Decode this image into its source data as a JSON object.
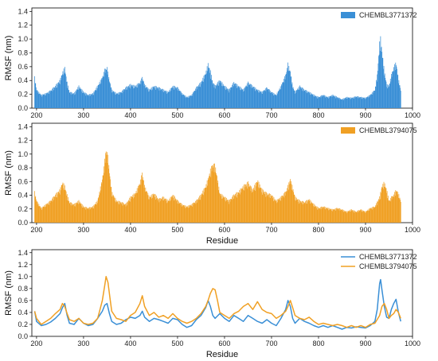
{
  "chart_data": [
    {
      "type": "bar",
      "ylabel": "RMSF (nm)",
      "xlabel": "",
      "xlim": [
        190,
        1000
      ],
      "ylim": [
        0,
        1.45
      ],
      "xticks": [
        "200",
        "300",
        "400",
        "500",
        "600",
        "700",
        "800",
        "900",
        "1000"
      ],
      "yticks": [
        "0.0",
        "0.2",
        "0.4",
        "0.6",
        "0.8",
        "1.0",
        "1.2",
        "1.4"
      ],
      "legend_position": "top-right",
      "series": [
        {
          "name": "CHEMBL3771372",
          "color": "#3a8fd6",
          "x": [
            196,
            200,
            210,
            220,
            230,
            240,
            250,
            255,
            260,
            265,
            270,
            280,
            290,
            300,
            310,
            320,
            330,
            340,
            345,
            350,
            355,
            360,
            370,
            380,
            390,
            400,
            410,
            420,
            425,
            430,
            440,
            450,
            460,
            470,
            480,
            490,
            500,
            510,
            520,
            530,
            540,
            550,
            560,
            565,
            570,
            575,
            580,
            590,
            600,
            610,
            620,
            630,
            640,
            650,
            660,
            670,
            680,
            690,
            700,
            710,
            720,
            730,
            735,
            740,
            745,
            750,
            760,
            770,
            780,
            790,
            800,
            810,
            820,
            830,
            840,
            850,
            860,
            870,
            880,
            890,
            900,
            910,
            920,
            925,
            930,
            932,
            935,
            940,
            945,
            950,
            955,
            960,
            965,
            970,
            975
          ],
          "values": [
            0.42,
            0.25,
            0.18,
            0.2,
            0.24,
            0.3,
            0.38,
            0.48,
            0.55,
            0.35,
            0.22,
            0.2,
            0.3,
            0.22,
            0.18,
            0.2,
            0.3,
            0.42,
            0.52,
            0.55,
            0.38,
            0.25,
            0.2,
            0.22,
            0.28,
            0.32,
            0.3,
            0.35,
            0.42,
            0.32,
            0.25,
            0.3,
            0.28,
            0.25,
            0.22,
            0.3,
            0.28,
            0.2,
            0.15,
            0.18,
            0.28,
            0.35,
            0.48,
            0.6,
            0.5,
            0.35,
            0.3,
            0.38,
            0.3,
            0.25,
            0.35,
            0.3,
            0.25,
            0.35,
            0.3,
            0.25,
            0.22,
            0.28,
            0.22,
            0.18,
            0.3,
            0.45,
            0.6,
            0.5,
            0.3,
            0.22,
            0.3,
            0.25,
            0.22,
            0.18,
            0.15,
            0.18,
            0.15,
            0.18,
            0.15,
            0.12,
            0.15,
            0.14,
            0.16,
            0.15,
            0.14,
            0.18,
            0.25,
            0.45,
            0.88,
            0.95,
            0.78,
            0.5,
            0.32,
            0.3,
            0.45,
            0.55,
            0.62,
            0.4,
            0.25
          ]
        }
      ]
    },
    {
      "type": "bar",
      "ylabel": "RMSF (nm)",
      "xlabel": "Residue",
      "xlim": [
        190,
        1000
      ],
      "ylim": [
        0,
        1.45
      ],
      "xticks": [
        "200",
        "300",
        "400",
        "500",
        "600",
        "700",
        "800",
        "900",
        "1000"
      ],
      "yticks": [
        "0.0",
        "0.2",
        "0.4",
        "0.6",
        "0.8",
        "1.0",
        "1.2",
        "1.4"
      ],
      "legend_position": "top-right",
      "series": [
        {
          "name": "CHEMBL3794075",
          "color": "#f0a024",
          "x": [
            196,
            200,
            210,
            220,
            230,
            240,
            250,
            255,
            260,
            265,
            270,
            280,
            290,
            300,
            310,
            320,
            330,
            335,
            340,
            345,
            348,
            352,
            356,
            360,
            370,
            380,
            390,
            400,
            410,
            420,
            425,
            430,
            440,
            450,
            460,
            470,
            480,
            490,
            500,
            510,
            520,
            530,
            540,
            550,
            560,
            565,
            570,
            575,
            580,
            585,
            590,
            600,
            610,
            620,
            630,
            640,
            650,
            660,
            670,
            680,
            690,
            700,
            710,
            720,
            730,
            735,
            740,
            745,
            750,
            760,
            770,
            780,
            790,
            800,
            810,
            820,
            830,
            840,
            850,
            860,
            870,
            880,
            890,
            900,
            910,
            920,
            930,
            935,
            940,
            945,
            950,
            955,
            960,
            965,
            970,
            975
          ],
          "values": [
            0.42,
            0.3,
            0.2,
            0.25,
            0.3,
            0.38,
            0.45,
            0.55,
            0.5,
            0.38,
            0.28,
            0.25,
            0.3,
            0.22,
            0.2,
            0.22,
            0.3,
            0.45,
            0.6,
            0.85,
            1.0,
            0.9,
            0.65,
            0.42,
            0.3,
            0.28,
            0.25,
            0.35,
            0.4,
            0.55,
            0.68,
            0.5,
            0.35,
            0.4,
            0.32,
            0.35,
            0.3,
            0.38,
            0.3,
            0.25,
            0.22,
            0.25,
            0.3,
            0.38,
            0.5,
            0.6,
            0.72,
            0.8,
            0.78,
            0.6,
            0.4,
            0.35,
            0.3,
            0.38,
            0.42,
            0.5,
            0.55,
            0.45,
            0.58,
            0.45,
            0.4,
            0.38,
            0.3,
            0.35,
            0.42,
            0.5,
            0.6,
            0.48,
            0.35,
            0.3,
            0.28,
            0.32,
            0.25,
            0.2,
            0.22,
            0.2,
            0.18,
            0.2,
            0.18,
            0.15,
            0.18,
            0.15,
            0.18,
            0.15,
            0.2,
            0.22,
            0.35,
            0.5,
            0.55,
            0.45,
            0.3,
            0.35,
            0.38,
            0.45,
            0.4,
            0.3
          ]
        }
      ]
    },
    {
      "type": "line",
      "ylabel": "RMSF (nm)",
      "xlabel": "Residue",
      "xlim": [
        190,
        1000
      ],
      "ylim": [
        0,
        1.45
      ],
      "xticks": [
        "200",
        "300",
        "400",
        "500",
        "600",
        "700",
        "800",
        "900",
        "1000"
      ],
      "yticks": [
        "0.0",
        "0.2",
        "0.4",
        "0.6",
        "0.8",
        "1.0",
        "1.2",
        "1.4"
      ],
      "legend_position": "top-right",
      "series": [
        {
          "name": "CHEMBL3771372",
          "color": "#3a8fd6",
          "x": [
            196,
            200,
            210,
            220,
            230,
            240,
            250,
            255,
            260,
            265,
            270,
            280,
            290,
            300,
            310,
            320,
            330,
            340,
            345,
            350,
            355,
            360,
            370,
            380,
            390,
            400,
            410,
            420,
            425,
            430,
            440,
            450,
            460,
            470,
            480,
            490,
            500,
            510,
            520,
            530,
            540,
            550,
            560,
            565,
            570,
            575,
            580,
            590,
            600,
            610,
            620,
            630,
            640,
            650,
            660,
            670,
            680,
            690,
            700,
            710,
            720,
            730,
            735,
            740,
            745,
            750,
            760,
            770,
            780,
            790,
            800,
            810,
            820,
            830,
            840,
            850,
            860,
            870,
            880,
            890,
            900,
            910,
            920,
            925,
            930,
            932,
            935,
            940,
            945,
            950,
            955,
            960,
            965,
            970,
            975
          ],
          "values": [
            0.42,
            0.25,
            0.18,
            0.2,
            0.24,
            0.3,
            0.38,
            0.48,
            0.55,
            0.35,
            0.22,
            0.2,
            0.3,
            0.22,
            0.18,
            0.2,
            0.3,
            0.42,
            0.52,
            0.55,
            0.38,
            0.25,
            0.2,
            0.22,
            0.28,
            0.32,
            0.3,
            0.35,
            0.42,
            0.32,
            0.25,
            0.3,
            0.28,
            0.25,
            0.22,
            0.3,
            0.28,
            0.2,
            0.15,
            0.18,
            0.28,
            0.35,
            0.48,
            0.6,
            0.5,
            0.35,
            0.3,
            0.38,
            0.3,
            0.25,
            0.35,
            0.3,
            0.25,
            0.35,
            0.3,
            0.25,
            0.22,
            0.28,
            0.22,
            0.18,
            0.3,
            0.45,
            0.6,
            0.5,
            0.3,
            0.22,
            0.3,
            0.25,
            0.22,
            0.18,
            0.15,
            0.18,
            0.15,
            0.18,
            0.15,
            0.12,
            0.15,
            0.14,
            0.16,
            0.15,
            0.14,
            0.18,
            0.25,
            0.45,
            0.88,
            0.95,
            0.78,
            0.5,
            0.32,
            0.3,
            0.45,
            0.55,
            0.62,
            0.4,
            0.25
          ]
        },
        {
          "name": "CHEMBL3794075",
          "color": "#f0a024",
          "x": [
            196,
            200,
            210,
            220,
            230,
            240,
            250,
            255,
            260,
            265,
            270,
            280,
            290,
            300,
            310,
            320,
            330,
            335,
            340,
            345,
            348,
            352,
            356,
            360,
            370,
            380,
            390,
            400,
            410,
            420,
            425,
            430,
            440,
            450,
            460,
            470,
            480,
            490,
            500,
            510,
            520,
            530,
            540,
            550,
            560,
            565,
            570,
            575,
            580,
            585,
            590,
            600,
            610,
            620,
            630,
            640,
            650,
            660,
            670,
            680,
            690,
            700,
            710,
            720,
            730,
            735,
            740,
            745,
            750,
            760,
            770,
            780,
            790,
            800,
            810,
            820,
            830,
            840,
            850,
            860,
            870,
            880,
            890,
            900,
            910,
            920,
            930,
            935,
            940,
            945,
            950,
            955,
            960,
            965,
            970,
            975
          ],
          "values": [
            0.42,
            0.3,
            0.2,
            0.25,
            0.3,
            0.38,
            0.45,
            0.55,
            0.5,
            0.38,
            0.28,
            0.25,
            0.3,
            0.22,
            0.2,
            0.22,
            0.3,
            0.45,
            0.6,
            0.85,
            1.0,
            0.9,
            0.65,
            0.42,
            0.3,
            0.28,
            0.25,
            0.35,
            0.4,
            0.55,
            0.68,
            0.5,
            0.35,
            0.4,
            0.32,
            0.35,
            0.3,
            0.38,
            0.3,
            0.25,
            0.22,
            0.25,
            0.3,
            0.38,
            0.5,
            0.6,
            0.72,
            0.8,
            0.78,
            0.6,
            0.4,
            0.35,
            0.3,
            0.38,
            0.42,
            0.5,
            0.55,
            0.45,
            0.58,
            0.45,
            0.4,
            0.38,
            0.3,
            0.35,
            0.42,
            0.5,
            0.6,
            0.48,
            0.35,
            0.3,
            0.28,
            0.32,
            0.25,
            0.2,
            0.22,
            0.2,
            0.18,
            0.2,
            0.18,
            0.15,
            0.18,
            0.15,
            0.18,
            0.15,
            0.2,
            0.22,
            0.35,
            0.5,
            0.55,
            0.45,
            0.3,
            0.35,
            0.38,
            0.45,
            0.4,
            0.3
          ]
        }
      ]
    }
  ]
}
